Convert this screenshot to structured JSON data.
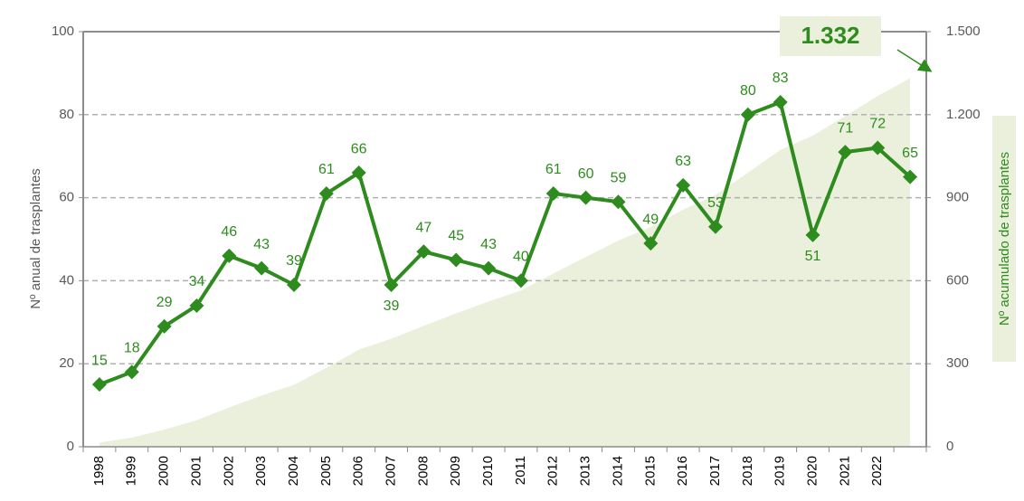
{
  "chart_data": {
    "type": "line",
    "y_label": "Nº anual de trasplantes",
    "y2_label": "Nº acumulado de trasplantes",
    "annotation": "1.332",
    "categories": [
      "1998",
      "1999",
      "2000",
      "2001",
      "2002",
      "2003",
      "2004",
      "2005",
      "2006",
      "2007",
      "2008",
      "2009",
      "2010",
      "2011",
      "2012",
      "2013",
      "2014",
      "2015",
      "2016",
      "2017",
      "2018",
      "2019",
      "2020",
      "2021",
      "2022",
      null
    ],
    "series": [
      {
        "name": "Nº acumulado de trasplantes",
        "type": "area",
        "axis": "y2",
        "color": "#eaf0dc",
        "values": [
          15,
          33,
          62,
          96,
          142,
          185,
          224,
          285,
          351,
          390,
          437,
          482,
          525,
          565,
          626,
          686,
          745,
          794,
          857,
          910,
          990,
          1073,
          1124,
          1195,
          1267,
          1332
        ]
      },
      {
        "name": "Nº anual de trasplantes",
        "type": "line",
        "color": "#2e8b1e",
        "values": [
          15,
          18,
          29,
          34,
          46,
          43,
          39,
          61,
          66,
          39,
          47,
          45,
          43,
          40,
          61,
          60,
          59,
          49,
          63,
          53,
          80,
          83,
          51,
          71,
          72,
          65
        ]
      }
    ],
    "ylim": [
      0,
      100
    ],
    "yticks": [
      0,
      20,
      40,
      60,
      80,
      100
    ],
    "y2lim": [
      0,
      1500
    ],
    "y2ticks": [
      0,
      300,
      600,
      900,
      {
        "value": 1200,
        "label": "1.200"
      },
      {
        "value": 1500,
        "label": "1.500"
      }
    ],
    "grid": true
  }
}
